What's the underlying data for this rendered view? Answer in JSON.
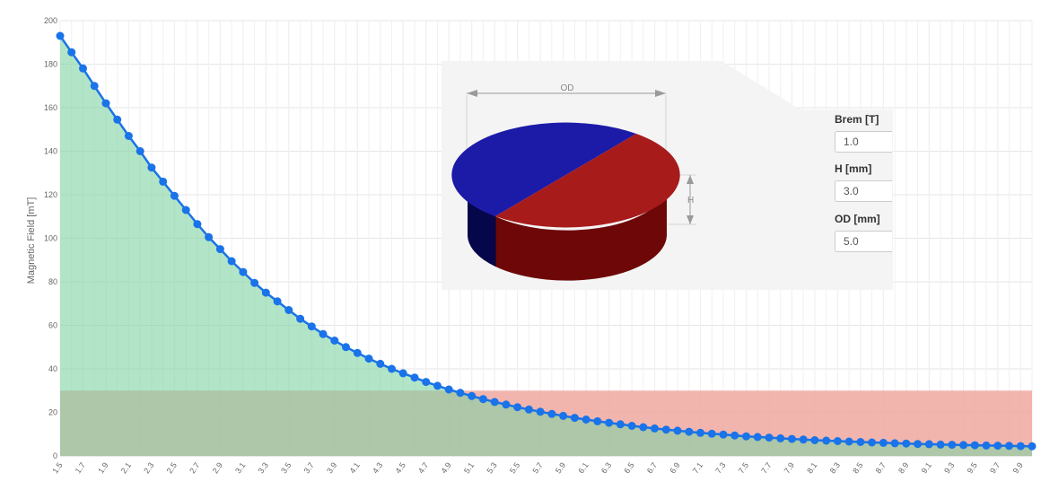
{
  "chart_data": {
    "type": "line",
    "title": "",
    "xlabel": "",
    "ylabel": "Magnetic Field [mT]",
    "ylim": [
      0,
      200
    ],
    "yticks": [
      0,
      20,
      40,
      60,
      80,
      100,
      120,
      140,
      160,
      180,
      200
    ],
    "xlim": [
      1.5,
      10.0
    ],
    "xtick_labels": [
      "1.5",
      "1.7",
      "1.9",
      "2.1",
      "2.3",
      "2.5",
      "2.7",
      "2.9",
      "3.1",
      "3.3",
      "3.5",
      "3.7",
      "3.9",
      "4.1",
      "4.3",
      "4.5",
      "4.7",
      "4.9",
      "5.1",
      "5.3",
      "5.5",
      "5.7",
      "5.9",
      "6.1",
      "6.3",
      "6.5",
      "6.7",
      "6.9",
      "7.1",
      "7.3",
      "7.5",
      "7.7",
      "7.9",
      "8.1",
      "8.3",
      "8.5",
      "8.7",
      "8.9",
      "9.1",
      "9.3",
      "9.5",
      "9.7",
      "9.9"
    ],
    "grid": true,
    "series": [
      {
        "color": "#1a73e8",
        "fill": "#a8e0c0",
        "x": [
          1.5,
          1.6,
          1.7,
          1.8,
          1.9,
          2.0,
          2.1,
          2.2,
          2.3,
          2.4,
          2.5,
          2.6,
          2.7,
          2.8,
          2.9,
          3.0,
          3.1,
          3.2,
          3.3,
          3.4,
          3.5,
          3.6,
          3.7,
          3.8,
          3.9,
          4.0,
          4.1,
          4.2,
          4.3,
          4.4,
          4.5,
          4.6,
          4.7,
          4.8,
          4.9,
          5.0,
          5.1,
          5.2,
          5.3,
          5.4,
          5.5,
          5.6,
          5.7,
          5.8,
          5.9,
          6.0,
          6.1,
          6.2,
          6.3,
          6.4,
          6.5,
          6.6,
          6.7,
          6.8,
          6.9,
          7.0,
          7.1,
          7.2,
          7.3,
          7.4,
          7.5,
          7.6,
          7.7,
          7.8,
          7.9,
          8.0,
          8.1,
          8.2,
          8.3,
          8.4,
          8.5,
          8.6,
          8.7,
          8.8,
          8.9,
          9.0,
          9.1,
          9.2,
          9.3,
          9.4,
          9.5,
          9.6,
          9.7,
          9.8,
          9.9,
          10.0
        ],
        "y": [
          193,
          185.5,
          178,
          170,
          162,
          154.5,
          147,
          140,
          132.5,
          126,
          119.5,
          113,
          106.5,
          100.5,
          95,
          89.5,
          84.5,
          79.5,
          75,
          71,
          67,
          63,
          59.5,
          56,
          53,
          50,
          47.3,
          44.7,
          42.3,
          40,
          38,
          36,
          34,
          32.2,
          30.5,
          29,
          27.5,
          26.1,
          24.8,
          23.6,
          22.4,
          21.3,
          20.3,
          19.3,
          18.4,
          17.5,
          16.7,
          15.9,
          15.2,
          14.5,
          13.8,
          13.2,
          12.6,
          12.1,
          11.6,
          11.1,
          10.6,
          10.2,
          9.8,
          9.4,
          9.0,
          8.7,
          8.4,
          8.1,
          7.8,
          7.5,
          7.2,
          7.0,
          6.8,
          6.6,
          6.4,
          6.2,
          6.0,
          5.8,
          5.7,
          5.5,
          5.4,
          5.2,
          5.1,
          5.0,
          4.9,
          4.8,
          4.7,
          4.6,
          4.5,
          4.4
        ]
      }
    ],
    "threshold": {
      "value": 30,
      "color": "#f0a8a0"
    }
  },
  "panel": {
    "od_label": "OD",
    "h_label": "H",
    "colors": {
      "north": "#1c1ba8",
      "south": "#a81b1b"
    },
    "fields": [
      {
        "label": "Brem [T]",
        "value": "1.0"
      },
      {
        "label": "H [mm]",
        "value": "3.0"
      },
      {
        "label": "OD [mm]",
        "value": "5.0"
      }
    ]
  }
}
